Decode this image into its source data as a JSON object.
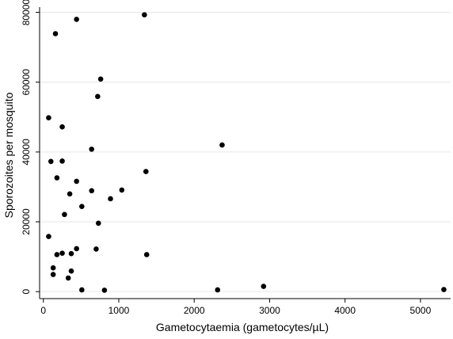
{
  "chart_data": {
    "type": "scatter",
    "xlabel": "Gametocytaemia (gametocytes/µL)",
    "ylabel": "Sporozoites per mosquito",
    "xlim": [
      -50,
      5400
    ],
    "ylim": [
      -2000,
      81500
    ],
    "xticks": [
      0,
      1000,
      2000,
      3000,
      4000,
      5000
    ],
    "yticks": [
      0,
      20000,
      40000,
      60000,
      80000
    ],
    "grid": "horizontal",
    "legend": "none",
    "marker_color": "#000000",
    "points": [
      {
        "x": 1340,
        "y": 79300
      },
      {
        "x": 440,
        "y": 78000
      },
      {
        "x": 160,
        "y": 73900
      },
      {
        "x": 760,
        "y": 60900
      },
      {
        "x": 720,
        "y": 55900
      },
      {
        "x": 70,
        "y": 49800
      },
      {
        "x": 250,
        "y": 47200
      },
      {
        "x": 2370,
        "y": 42000
      },
      {
        "x": 640,
        "y": 40800
      },
      {
        "x": 100,
        "y": 37300
      },
      {
        "x": 250,
        "y": 37400
      },
      {
        "x": 1360,
        "y": 34400
      },
      {
        "x": 180,
        "y": 32600
      },
      {
        "x": 440,
        "y": 31600
      },
      {
        "x": 1040,
        "y": 29100
      },
      {
        "x": 640,
        "y": 28900
      },
      {
        "x": 350,
        "y": 28000
      },
      {
        "x": 890,
        "y": 26600
      },
      {
        "x": 510,
        "y": 24400
      },
      {
        "x": 280,
        "y": 22100
      },
      {
        "x": 730,
        "y": 19600
      },
      {
        "x": 70,
        "y": 15800
      },
      {
        "x": 700,
        "y": 12200
      },
      {
        "x": 440,
        "y": 12300
      },
      {
        "x": 250,
        "y": 11000
      },
      {
        "x": 370,
        "y": 10900
      },
      {
        "x": 180,
        "y": 10600
      },
      {
        "x": 1370,
        "y": 10600
      },
      {
        "x": 130,
        "y": 6800
      },
      {
        "x": 370,
        "y": 5900
      },
      {
        "x": 130,
        "y": 4900
      },
      {
        "x": 330,
        "y": 3900
      },
      {
        "x": 2920,
        "y": 1500
      },
      {
        "x": 510,
        "y": 500
      },
      {
        "x": 810,
        "y": 400
      },
      {
        "x": 2310,
        "y": 500
      },
      {
        "x": 5310,
        "y": 600
      }
    ]
  }
}
